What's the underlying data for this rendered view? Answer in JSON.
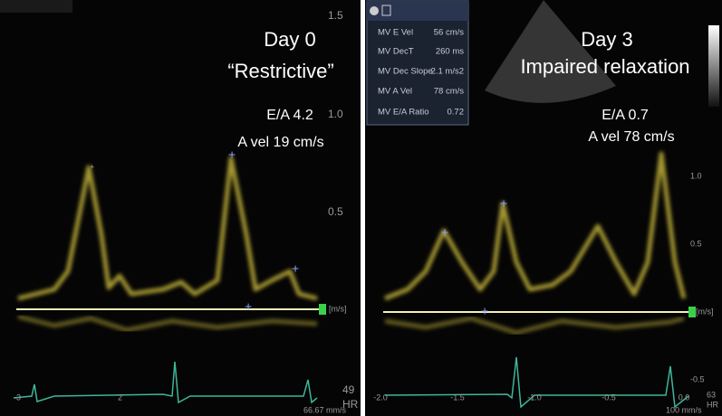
{
  "left_panel": {
    "title": "Day 0",
    "subtitle": "“Restrictive”",
    "ea_ratio": "E/A 4.2",
    "a_velocity": "A vel 19 cm/s",
    "scale": [
      "1.5",
      "1.0",
      "0.5"
    ],
    "unit": "[m/s]",
    "heart_rate": "49",
    "hr_label": "HR",
    "sweep_speed": "66.67 mm/s",
    "time_ticks": [
      "-3",
      "2"
    ]
  },
  "right_panel": {
    "title": "Day 3",
    "subtitle": "Impaired relaxation",
    "ea_ratio": "E/A 0.7",
    "a_velocity": "A vel 78 cm/s",
    "scale": [
      "1.0",
      "0.5",
      "-0.5"
    ],
    "unit": "[m/s]",
    "heart_rate": "63",
    "hr_label": "HR",
    "sweep_speed": "100 mm/s",
    "time_ticks": [
      "-2.0",
      "-1.5",
      "-1.0",
      "-0.5",
      "0.0"
    ],
    "measurements": [
      {
        "label": "MV E Vel",
        "value": "56 cm/s"
      },
      {
        "label": "MV DecT",
        "value": "260 ms"
      },
      {
        "label": "MV Dec Slope",
        "value": "2.1 m/s2"
      },
      {
        "label": "MV A Vel",
        "value": "78 cm/s"
      },
      {
        "label": "MV E/A Ratio",
        "value": "0.72"
      }
    ]
  }
}
